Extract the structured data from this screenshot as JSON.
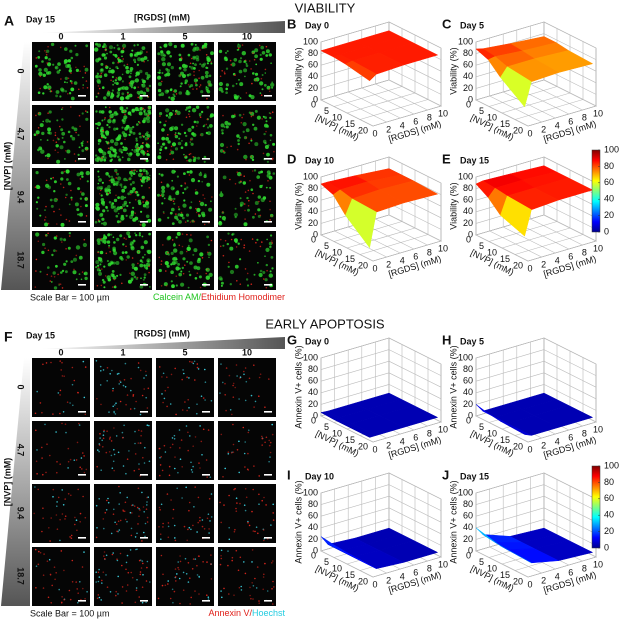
{
  "sections": [
    {
      "title": "VIABILITY",
      "images": {
        "label": "A",
        "day": "Day 15",
        "col_header": "[RGDS] (mM)",
        "columns": [
          0,
          1,
          5,
          10
        ],
        "row_header": "[NVP] (mM)",
        "rows": [
          0,
          4.7,
          9.4,
          18.7
        ],
        "scale_bar": "Scale Bar = 100 µm",
        "stain": [
          {
            "text": "Calcein AM/",
            "color": "#1fc41f"
          },
          {
            "text": "Ethidium Homodimer",
            "color": "#e0201a"
          }
        ]
      },
      "z_label": "Viability (%)",
      "nvp_label": "[NVP] (mM)",
      "rgds_label": "[RGDS] (mM)",
      "zlim": [
        0,
        100
      ],
      "zticks": [
        0,
        20,
        40,
        60,
        80,
        100
      ],
      "nvp_lim": [
        0,
        20
      ],
      "nvp_ticks": [
        0,
        5,
        10,
        15,
        20
      ],
      "rgds_lim": [
        0,
        10
      ],
      "rgds_ticks": [
        0,
        2,
        4,
        6,
        8,
        10
      ],
      "colorbar_ticks": [
        0,
        20,
        40,
        60,
        80,
        100
      ],
      "plots": [
        {
          "label": "B",
          "day": "Day 0",
          "values": [
            [
              85,
              85,
              85,
              85
            ],
            [
              85,
              85,
              85,
              85
            ],
            [
              83,
              85,
              85,
              85
            ],
            [
              75,
              83,
              85,
              85
            ]
          ]
        },
        {
          "label": "C",
          "day": "Day 5",
          "values": [
            [
              88,
              85,
              80,
              75
            ],
            [
              80,
              82,
              78,
              75
            ],
            [
              60,
              75,
              75,
              72
            ],
            [
              30,
              70,
              72,
              70
            ]
          ]
        },
        {
          "label": "D",
          "day": "Day 10",
          "values": [
            [
              88,
              88,
              85,
              80
            ],
            [
              80,
              85,
              85,
              80
            ],
            [
              55,
              80,
              82,
              80
            ],
            [
              20,
              78,
              80,
              78
            ]
          ]
        },
        {
          "label": "E",
          "day": "Day 15",
          "values": [
            [
              88,
              90,
              88,
              85
            ],
            [
              75,
              88,
              88,
              85
            ],
            [
              55,
              85,
              85,
              85
            ],
            [
              40,
              82,
              85,
              85
            ]
          ]
        }
      ]
    },
    {
      "title": "EARLY APOPTOSIS",
      "images": {
        "label": "F",
        "day": "Day 15",
        "col_header": "[RGDS] (mM)",
        "columns": [
          0,
          1,
          5,
          10
        ],
        "row_header": "[NVP] (mM)",
        "rows": [
          0,
          4.7,
          9.4,
          18.7
        ],
        "scale_bar": "Scale Bar = 100 µm",
        "stain": [
          {
            "text": "Annexin V/",
            "color": "#e0201a"
          },
          {
            "text": "Hoechst",
            "color": "#22cce0"
          }
        ]
      },
      "z_label": "Annexin V+ cells (%)",
      "nvp_label": "[NVP] (mM)",
      "rgds_label": "[RGDS] (mM)",
      "zlim": [
        0,
        100
      ],
      "zticks": [
        0,
        20,
        40,
        60,
        80,
        100
      ],
      "nvp_lim": [
        0,
        20
      ],
      "nvp_ticks": [
        0,
        5,
        10,
        15,
        20
      ],
      "rgds_lim": [
        0,
        10
      ],
      "rgds_ticks": [
        0,
        2,
        4,
        6,
        8,
        10
      ],
      "colorbar_ticks": [
        0,
        20,
        40,
        60,
        80,
        100
      ],
      "plots": [
        {
          "label": "G",
          "day": "Day 0",
          "values": [
            [
              6,
              5,
              5,
              5
            ],
            [
              5,
              5,
              5,
              5
            ],
            [
              5,
              5,
              5,
              5
            ],
            [
              5,
              5,
              5,
              5
            ]
          ]
        },
        {
          "label": "H",
          "day": "Day 5",
          "values": [
            [
              20,
              5,
              5,
              5
            ],
            [
              15,
              5,
              5,
              5
            ],
            [
              12,
              5,
              5,
              5
            ],
            [
              10,
              5,
              5,
              5
            ]
          ]
        },
        {
          "label": "I",
          "day": "Day 10",
          "values": [
            [
              25,
              8,
              5,
              5
            ],
            [
              22,
              8,
              5,
              5
            ],
            [
              20,
              8,
              5,
              5
            ],
            [
              18,
              8,
              5,
              5
            ]
          ]
        },
        {
          "label": "J",
          "day": "Day 15",
          "values": [
            [
              40,
              25,
              8,
              5
            ],
            [
              35,
              22,
              8,
              5
            ],
            [
              30,
              20,
              8,
              5
            ],
            [
              28,
              18,
              8,
              5
            ]
          ]
        }
      ]
    }
  ]
}
